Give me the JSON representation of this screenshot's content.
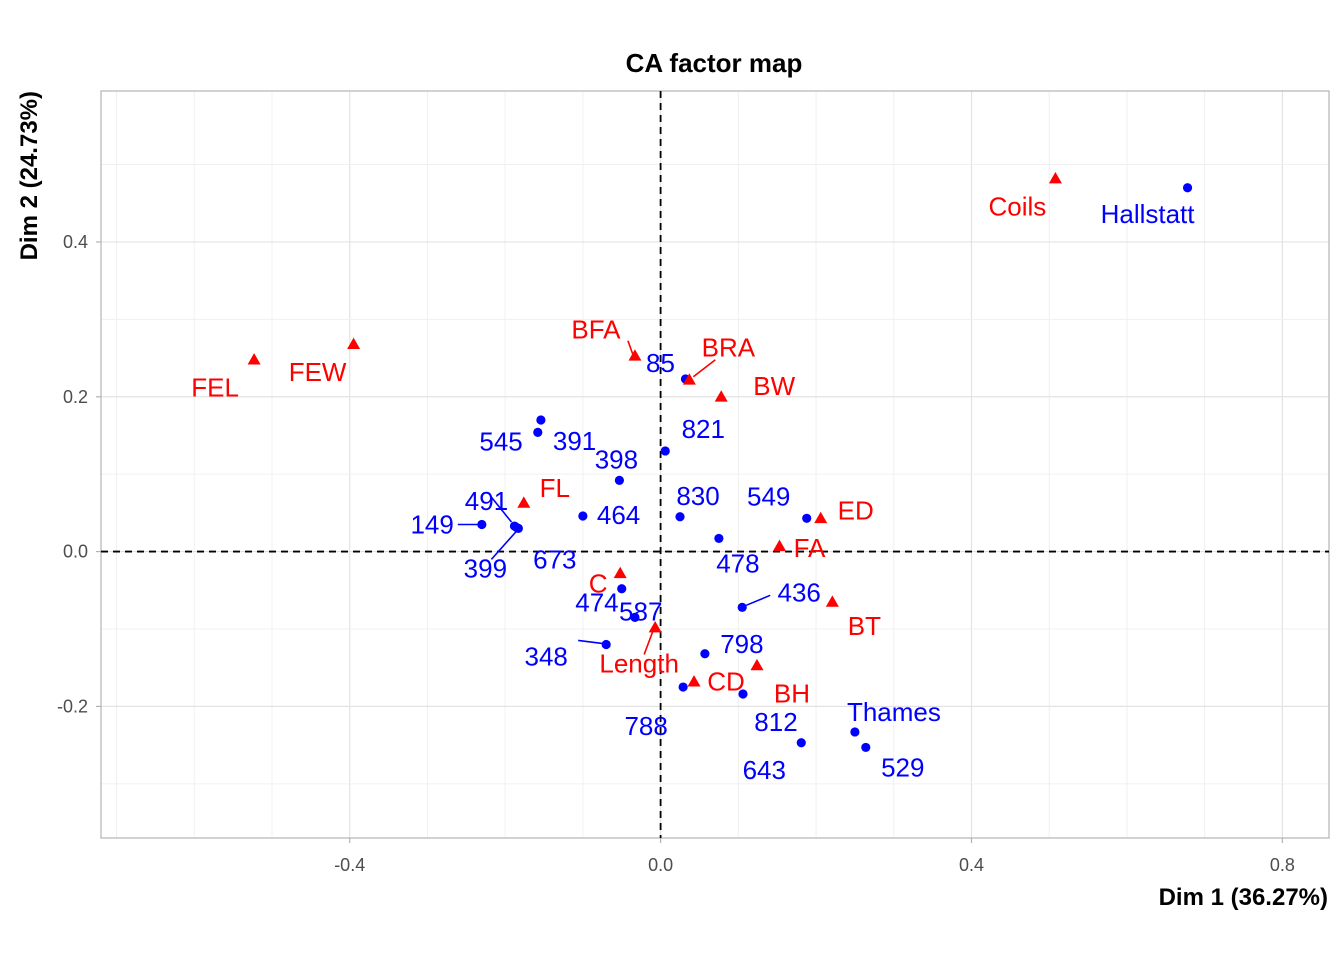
{
  "chart_data": {
    "type": "scatter",
    "title": "CA factor map",
    "xlabel": "Dim 1 (36.27%)",
    "ylabel": "Dim 2 (24.73%)",
    "xlim": [
      -0.72,
      0.86
    ],
    "ylim": [
      -0.37,
      0.595
    ],
    "xticks": [
      -0.4,
      0.0,
      0.4,
      0.8
    ],
    "xtick_labels": [
      "-0.4",
      "0.0",
      "0.4",
      "0.8"
    ],
    "yticks": [
      -0.2,
      0.0,
      0.2,
      0.4
    ],
    "ytick_labels": [
      "-0.2",
      "0.0",
      "0.2",
      "0.4"
    ],
    "grid": true,
    "reference_lines": {
      "x": 0,
      "y": 0,
      "style": "dashed"
    },
    "colors": {
      "rows": "#0000ff",
      "cols": "#ff0000"
    },
    "series": [
      {
        "marker": "circle",
        "color": "#0000ff",
        "points": [
          {
            "label": "Hallstatt",
            "x": 0.678,
            "y": 0.47
          },
          {
            "label": "85",
            "x": 0.032,
            "y": 0.223
          },
          {
            "label": "391",
            "x": -0.154,
            "y": 0.17
          },
          {
            "label": "545",
            "x": -0.158,
            "y": 0.154
          },
          {
            "label": "821",
            "x": 0.006,
            "y": 0.13
          },
          {
            "label": "398",
            "x": -0.053,
            "y": 0.092
          },
          {
            "label": "491",
            "x": -0.188,
            "y": 0.033
          },
          {
            "label": "464",
            "x": -0.1,
            "y": 0.046
          },
          {
            "label": "830",
            "x": 0.025,
            "y": 0.045
          },
          {
            "label": "549",
            "x": 0.188,
            "y": 0.043
          },
          {
            "label": "149",
            "x": -0.23,
            "y": 0.035
          },
          {
            "label": "399",
            "x": -0.183,
            "y": 0.03
          },
          {
            "label": "673",
            "x": -0.185,
            "y": 0.031
          },
          {
            "label": "478",
            "x": 0.075,
            "y": 0.017
          },
          {
            "label": "587",
            "x": -0.05,
            "y": -0.048
          },
          {
            "label": "436",
            "x": 0.105,
            "y": -0.072
          },
          {
            "label": "474",
            "x": -0.033,
            "y": -0.085
          },
          {
            "label": "348",
            "x": -0.07,
            "y": -0.12
          },
          {
            "label": "798",
            "x": 0.057,
            "y": -0.132
          },
          {
            "label": "788",
            "x": 0.029,
            "y": -0.175
          },
          {
            "label": "812",
            "x": 0.106,
            "y": -0.184
          },
          {
            "label": "Thames",
            "x": 0.25,
            "y": -0.233
          },
          {
            "label": "643",
            "x": 0.181,
            "y": -0.247
          },
          {
            "label": "529",
            "x": 0.264,
            "y": -0.253
          }
        ]
      },
      {
        "marker": "triangle",
        "color": "#ff0000",
        "points": [
          {
            "label": "Coils",
            "x": 0.508,
            "y": 0.482
          },
          {
            "label": "FEW",
            "x": -0.395,
            "y": 0.268
          },
          {
            "label": "FEL",
            "x": -0.523,
            "y": 0.248
          },
          {
            "label": "BFA",
            "x": -0.033,
            "y": 0.253
          },
          {
            "label": "BRA",
            "x": 0.037,
            "y": 0.222
          },
          {
            "label": "BW",
            "x": 0.078,
            "y": 0.2
          },
          {
            "label": "FL",
            "x": -0.176,
            "y": 0.063
          },
          {
            "label": "ED",
            "x": 0.206,
            "y": 0.043
          },
          {
            "label": "FA",
            "x": 0.153,
            "y": 0.007
          },
          {
            "label": "C",
            "x": -0.052,
            "y": -0.028
          },
          {
            "label": "BT",
            "x": 0.221,
            "y": -0.065
          },
          {
            "label": "Length",
            "x": -0.007,
            "y": -0.098
          },
          {
            "label": "BH",
            "x": 0.124,
            "y": -0.147
          },
          {
            "label": "CD",
            "x": 0.043,
            "y": -0.168
          }
        ]
      }
    ]
  }
}
